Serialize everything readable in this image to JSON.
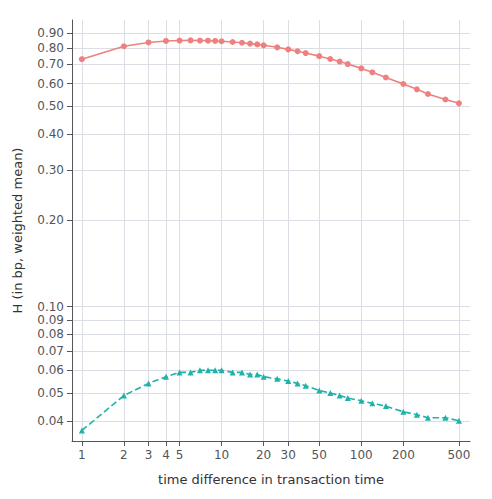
{
  "chart_data": {
    "type": "line",
    "xlabel": "time difference in transaction time",
    "ylabel": "H (in bp, weighted mean)",
    "log": true,
    "grid": true,
    "x": [
      1,
      2,
      3,
      4,
      5,
      6,
      7,
      8,
      9,
      10,
      12,
      14,
      16,
      18,
      20,
      25,
      30,
      35,
      40,
      50,
      60,
      70,
      80,
      100,
      120,
      150,
      200,
      250,
      300,
      400,
      500
    ],
    "xlim": [
      0.85,
      600
    ],
    "xticks": [
      1,
      2,
      3,
      4,
      5,
      10,
      20,
      30,
      50,
      100,
      200,
      500
    ],
    "ylim": [
      0.034,
      1.0
    ],
    "yticks": [
      0.04,
      0.05,
      0.06,
      0.07,
      0.08,
      0.09,
      {
        "value": 0.1,
        "label": "0.10"
      },
      {
        "value": 0.2,
        "label": "0.20"
      },
      {
        "value": 0.3,
        "label": "0.30"
      },
      {
        "value": 0.4,
        "label": "0.40"
      },
      {
        "value": 0.5,
        "label": "0.50"
      },
      {
        "value": 0.6,
        "label": "0.60"
      },
      {
        "value": 0.7,
        "label": "0.70"
      },
      {
        "value": 0.8,
        "label": "0.80"
      },
      {
        "value": 0.9,
        "label": "0.90"
      }
    ],
    "series": [
      {
        "color": "#F08080",
        "marker": "circle",
        "line_style": "solid",
        "values": [
          0.73,
          0.81,
          0.835,
          0.845,
          0.848,
          0.849,
          0.848,
          0.847,
          0.845,
          0.843,
          0.838,
          0.833,
          0.827,
          0.822,
          0.816,
          0.803,
          0.79,
          0.778,
          0.767,
          0.748,
          0.731,
          0.716,
          0.702,
          0.678,
          0.657,
          0.63,
          0.598,
          0.573,
          0.552,
          0.528,
          0.512
        ]
      },
      {
        "color": "#20B2AA",
        "marker": "triangle",
        "line_style": "dashed",
        "values": [
          0.037,
          0.049,
          0.054,
          0.057,
          0.059,
          0.059,
          0.06,
          0.06,
          0.06,
          0.06,
          0.059,
          0.059,
          0.058,
          0.058,
          0.057,
          0.056,
          0.055,
          0.054,
          0.053,
          0.051,
          0.05,
          0.049,
          0.048,
          0.047,
          0.046,
          0.045,
          0.043,
          0.042,
          0.041,
          0.041,
          0.04
        ]
      }
    ]
  }
}
